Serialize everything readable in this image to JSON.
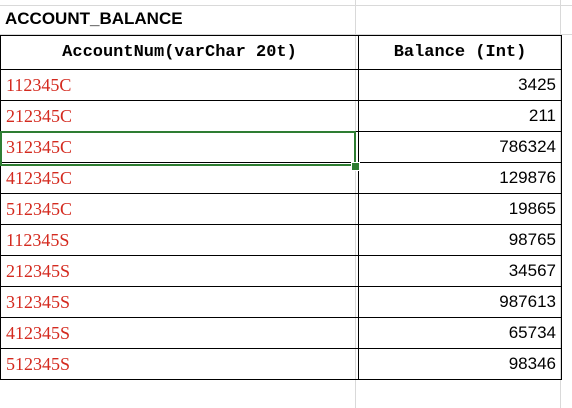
{
  "sheet": {
    "title": "ACCOUNT_BALANCE"
  },
  "table": {
    "headers": [
      "AccountNum(varChar 20t)",
      "Balance (Int)"
    ],
    "rows": [
      {
        "account": "112345C",
        "balance": "3425"
      },
      {
        "account": "212345C",
        "balance": "211"
      },
      {
        "account": "312345C",
        "balance": "786324"
      },
      {
        "account": "412345C",
        "balance": "129876"
      },
      {
        "account": "512345C",
        "balance": "19865"
      },
      {
        "account": "112345S",
        "balance": "98765"
      },
      {
        "account": "212345S",
        "balance": "34567"
      },
      {
        "account": "312345S",
        "balance": "987613"
      },
      {
        "account": "412345S",
        "balance": "65734"
      },
      {
        "account": "512345S",
        "balance": "98346"
      }
    ],
    "selected_row": 2
  },
  "colors": {
    "account_text": "#d42a1f",
    "selection": "#2e7d32",
    "gridline": "#d9d9d9"
  }
}
